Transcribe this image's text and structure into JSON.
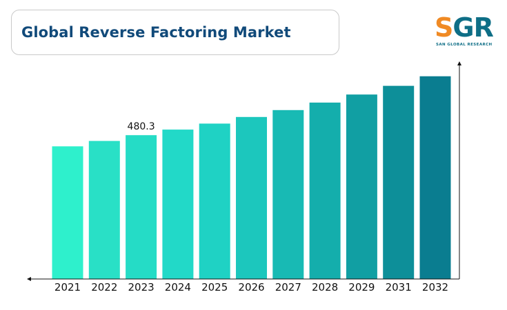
{
  "chart_data": {
    "type": "bar",
    "title": "Global Reverse Factoring Market",
    "categories": [
      "2021",
      "2022",
      "2023",
      "2024",
      "2025",
      "2026",
      "2027",
      "2028",
      "2029",
      "2031",
      "2032"
    ],
    "values": [
      443,
      461,
      480.3,
      499,
      519,
      541,
      564,
      589,
      616,
      645,
      677
    ],
    "data_labels": [
      null,
      null,
      "480.3",
      null,
      null,
      null,
      null,
      null,
      null,
      null,
      null
    ],
    "colors": [
      "#2ef0cc",
      "#29e0c6",
      "#25dcc6",
      "#22d9c8",
      "#1fd2c4",
      "#1cc7bd",
      "#18bab4",
      "#14aeac",
      "#119fa3",
      "#0d8f99",
      "#0a7d90"
    ],
    "xlabel": "",
    "ylabel": "",
    "ylim": [
      0,
      720
    ],
    "grid": false,
    "legend": "none"
  },
  "logo": {
    "letters_s": "S",
    "letters_rest": "GR",
    "subtitle": "SAN GLOBAL RESEARCH"
  }
}
